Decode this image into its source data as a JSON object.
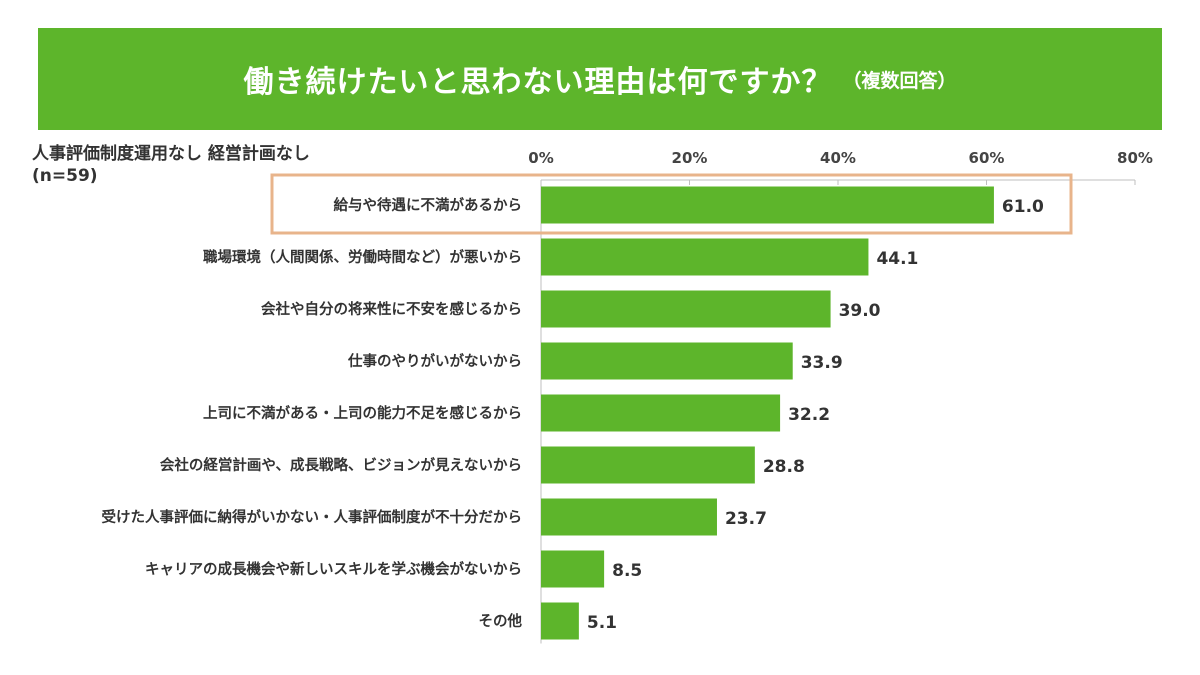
{
  "header": {
    "title": "働き続けたいと思わない理由は何ですか？",
    "subtitle": "（複数回答）"
  },
  "segment": {
    "line1": "人事評価制度運用なし 経営計画なし",
    "line2": "(n=59)"
  },
  "colors": {
    "bar": "#5db52b",
    "banner": "#5db52b",
    "highlight_border": "#e8b48b",
    "axis": "#bfbfbf"
  },
  "chart_data": {
    "type": "bar",
    "orientation": "horizontal",
    "title": "働き続けたいと思わない理由は何ですか？",
    "xlim": [
      0,
      80
    ],
    "x_ticks": [
      0,
      20,
      40,
      60,
      80
    ],
    "x_tick_labels": [
      "0%",
      "20%",
      "40%",
      "60%",
      "80%"
    ],
    "categories": [
      "給与や待遇に不満があるから",
      "職場環境（人間関係、労働時間など）が悪いから",
      "会社や自分の将来性に不安を感じるから",
      "仕事のやりがいがないから",
      "上司に不満がある・上司の能力不足を感じるから",
      "会社の経営計画や、成長戦略、ビジョンが見えないから",
      "受けた人事評価に納得がいかない・人事評価制度が不十分だから",
      "キャリアの成長機会や新しいスキルを学ぶ機会がないから",
      "その他"
    ],
    "values": [
      61.0,
      44.1,
      39.0,
      33.9,
      32.2,
      28.8,
      23.7,
      8.5,
      5.1
    ],
    "value_labels": [
      "61.0",
      "44.1",
      "39.0",
      "33.9",
      "32.2",
      "28.8",
      "23.7",
      "8.5",
      "5.1"
    ],
    "highlighted_index": 0,
    "grid": false
  }
}
